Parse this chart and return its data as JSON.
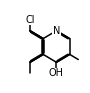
{
  "bg": "#ffffff",
  "bc": "#000000",
  "lw": 1.1,
  "off": 0.011,
  "s": 0.17,
  "mx": 0.48,
  "my": 0.5,
  "afs": 7.0,
  "sfs": 6.0,
  "figsize": [
    0.9,
    0.93
  ],
  "dpi": 100,
  "Cl_label": "Cl",
  "N_label": "N",
  "OH_label": "OH",
  "Me_label": ""
}
